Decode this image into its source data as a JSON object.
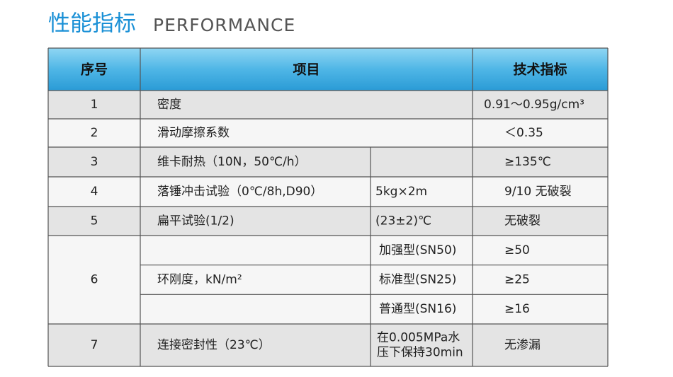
{
  "header": {
    "title": "性能指标",
    "subtitle": "PERFORMANCE"
  },
  "table": {
    "columns": [
      "序号",
      "项目",
      "技术指标"
    ],
    "rows": [
      {
        "no": "1",
        "item": "密度",
        "spec": "0.91～0.95g/cm³"
      },
      {
        "no": "2",
        "item": "滑动摩擦系数",
        "spec": "＜0.35"
      },
      {
        "no": "3",
        "item": "维卡耐热（10N，50℃/h）",
        "spec": "≥135℃"
      },
      {
        "no": "4",
        "item": "落锤冲击试验（0℃/8h,D90）",
        "condition": "5kg×2m",
        "spec": "9/10 无破裂"
      },
      {
        "no": "5",
        "item": "扁平试验(1/2)",
        "condition": "(23±2)℃",
        "spec": "无破裂"
      },
      {
        "no": "6",
        "item": "环刚度，kN/m²",
        "grades": [
          {
            "condition": "加强型(SN50)",
            "spec": "≥50"
          },
          {
            "condition": "标准型(SN25)",
            "spec": "≥25"
          },
          {
            "condition": "普通型(SN16)",
            "spec": "≥16"
          }
        ]
      },
      {
        "no": "7",
        "item": "连接密封性（23℃）",
        "condition": [
          "在0.005MPa水",
          "压下保持30min"
        ],
        "spec": "无渗漏"
      }
    ]
  }
}
